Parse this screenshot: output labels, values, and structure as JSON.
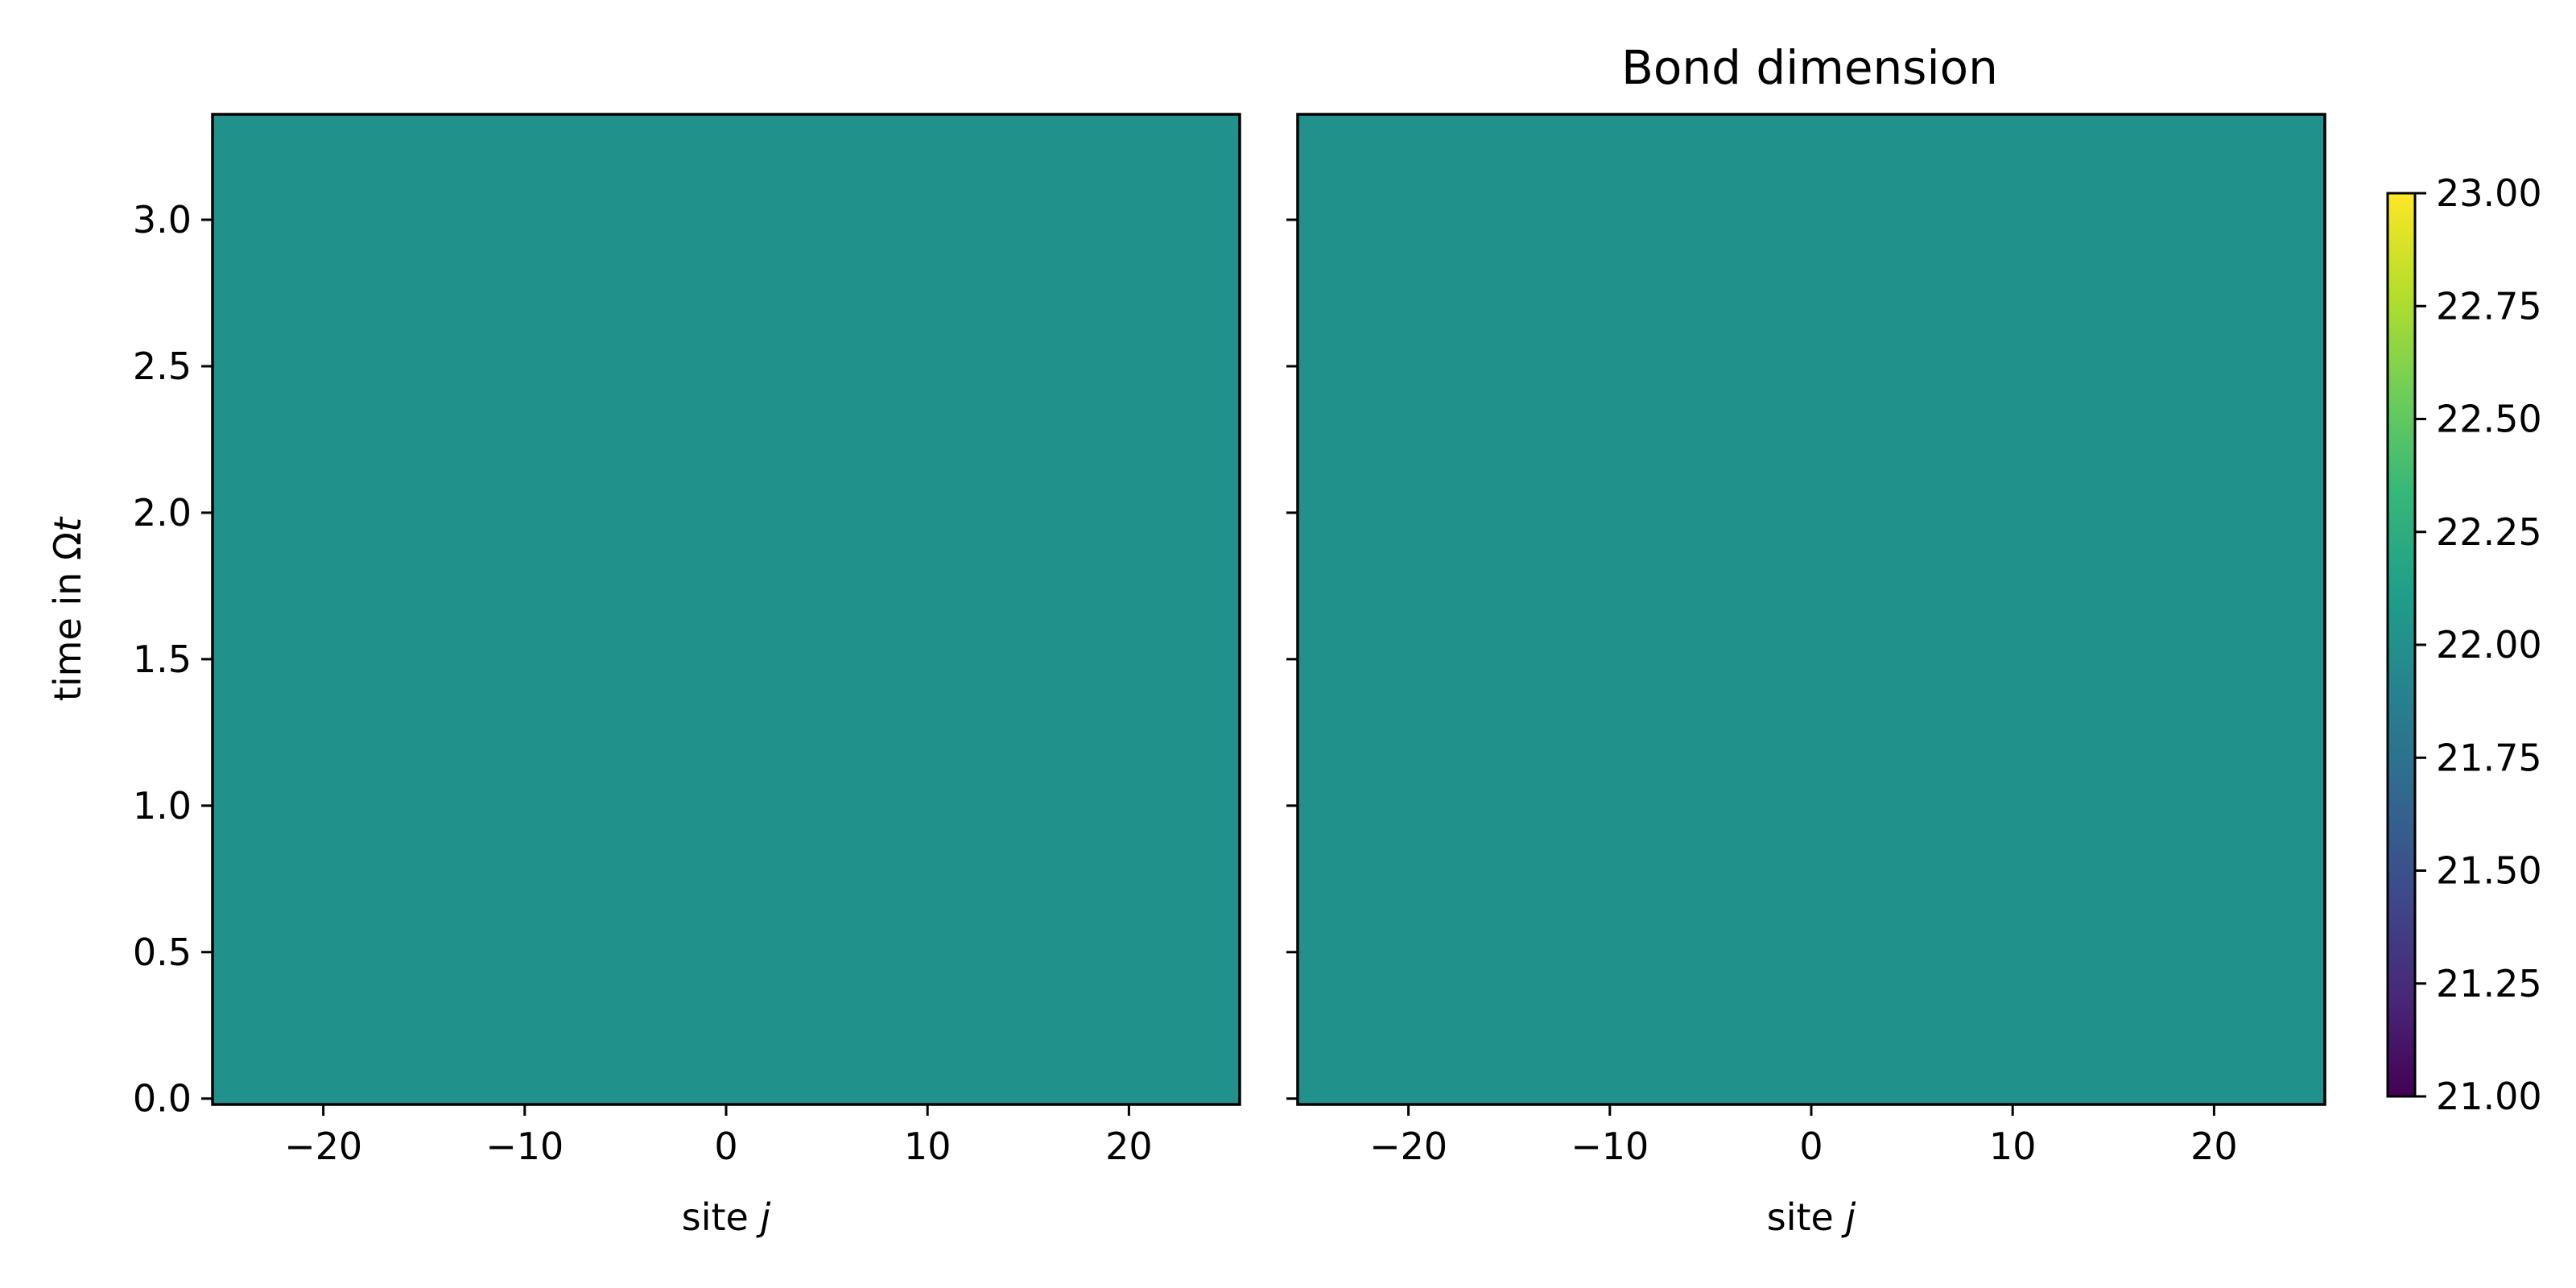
{
  "chart_data": [
    {
      "type": "heatmap",
      "title": "",
      "xlabel_text": "site ",
      "xlabel_var": "j",
      "ylabel_text": "time in Ω",
      "ylabel_var": "t",
      "xlim": [
        -25.5,
        25.5
      ],
      "ylim": [
        -0.02,
        3.36
      ],
      "xticks": [
        -20,
        -10,
        0,
        10,
        20
      ],
      "xtick_labels": [
        "−20",
        "−10",
        "0",
        "10",
        "20"
      ],
      "yticks": [
        0.0,
        0.5,
        1.0,
        1.5,
        2.0,
        2.5,
        3.0
      ],
      "ytick_labels": [
        "0.0",
        "0.5",
        "1.0",
        "1.5",
        "2.0",
        "2.5",
        "3.0"
      ],
      "value": 22.0,
      "fill_color": "#21918c"
    },
    {
      "type": "heatmap",
      "title": "Bond dimension",
      "xlabel_text": "site ",
      "xlabel_var": "j",
      "xlim": [
        -25.5,
        25.5
      ],
      "ylim": [
        -0.02,
        3.36
      ],
      "xticks": [
        -20,
        -10,
        0,
        10,
        20
      ],
      "xtick_labels": [
        "−20",
        "−10",
        "0",
        "10",
        "20"
      ],
      "yticks": [
        0.0,
        0.5,
        1.0,
        1.5,
        2.0,
        2.5,
        3.0
      ],
      "value": 22.0,
      "fill_color": "#21918c"
    }
  ],
  "colorbar": {
    "colormap": "viridis",
    "range": [
      21.0,
      23.0
    ],
    "ticks": [
      21.0,
      21.25,
      21.5,
      21.75,
      22.0,
      22.25,
      22.5,
      22.75,
      23.0
    ],
    "tick_labels": [
      "21.00",
      "21.25",
      "21.50",
      "21.75",
      "22.00",
      "22.25",
      "22.50",
      "22.75",
      "23.00"
    ],
    "colors": [
      "#440154",
      "#482878",
      "#3e4989",
      "#31688e",
      "#26828e",
      "#1f9e89",
      "#35b779",
      "#6ece58",
      "#b5de2b",
      "#fde725"
    ]
  }
}
